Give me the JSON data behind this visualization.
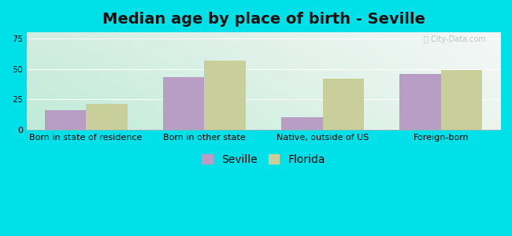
{
  "title": "Median age by place of birth - Seville",
  "categories": [
    "Born in state of residence",
    "Born in other state",
    "Native, outside of US",
    "Foreign-born"
  ],
  "seville_values": [
    16,
    43,
    10,
    46
  ],
  "florida_values": [
    21,
    57,
    42,
    49
  ],
  "seville_color": "#b89ec4",
  "florida_color": "#c8cf9a",
  "ylim": [
    0,
    80
  ],
  "yticks": [
    0,
    25,
    50,
    75
  ],
  "background_outer": "#00e0e8",
  "bar_width": 0.35,
  "legend_seville": "Seville",
  "legend_florida": "Florida",
  "title_fontsize": 14,
  "tick_fontsize": 8,
  "legend_fontsize": 10
}
